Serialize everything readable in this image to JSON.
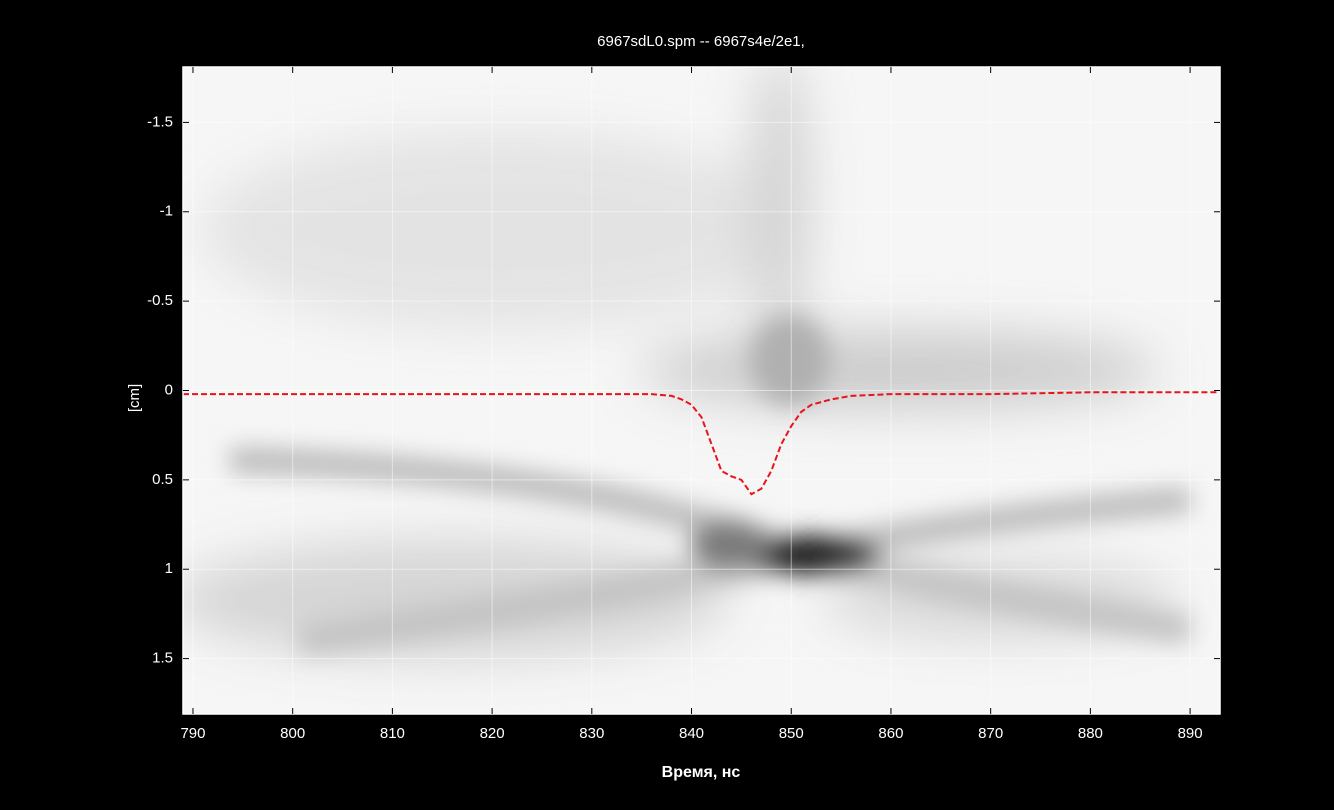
{
  "chart_data": {
    "type": "line",
    "title": "6967sdL0.spm -- 6967s4e/2e1,",
    "x_label": "Время, нс",
    "y_label": "[cm]",
    "xlim": [
      789,
      893
    ],
    "xticks": [
      790,
      800,
      810,
      820,
      830,
      840,
      850,
      860,
      870,
      880,
      890
    ],
    "ylim": [
      -1.81,
      1.81
    ],
    "yticks": [
      -1.5,
      -1,
      -0.5,
      0,
      0.5,
      1,
      1.5
    ],
    "y_inverted": true,
    "grid": true,
    "series": [
      {
        "color": "#e8141c",
        "x": [
          789,
          795,
          800,
          810,
          820,
          830,
          836,
          838,
          839,
          840,
          841,
          842,
          843,
          844,
          845,
          846,
          847,
          848,
          849,
          850,
          851,
          852,
          854,
          856,
          860,
          870,
          880,
          893
        ],
        "values": [
          0.02,
          0.02,
          0.02,
          0.02,
          0.02,
          0.02,
          0.02,
          0.03,
          0.05,
          0.08,
          0.15,
          0.3,
          0.45,
          0.48,
          0.5,
          0.58,
          0.55,
          0.45,
          0.3,
          0.2,
          0.12,
          0.08,
          0.05,
          0.03,
          0.02,
          0.02,
          0.01,
          0.01
        ]
      }
    ]
  }
}
